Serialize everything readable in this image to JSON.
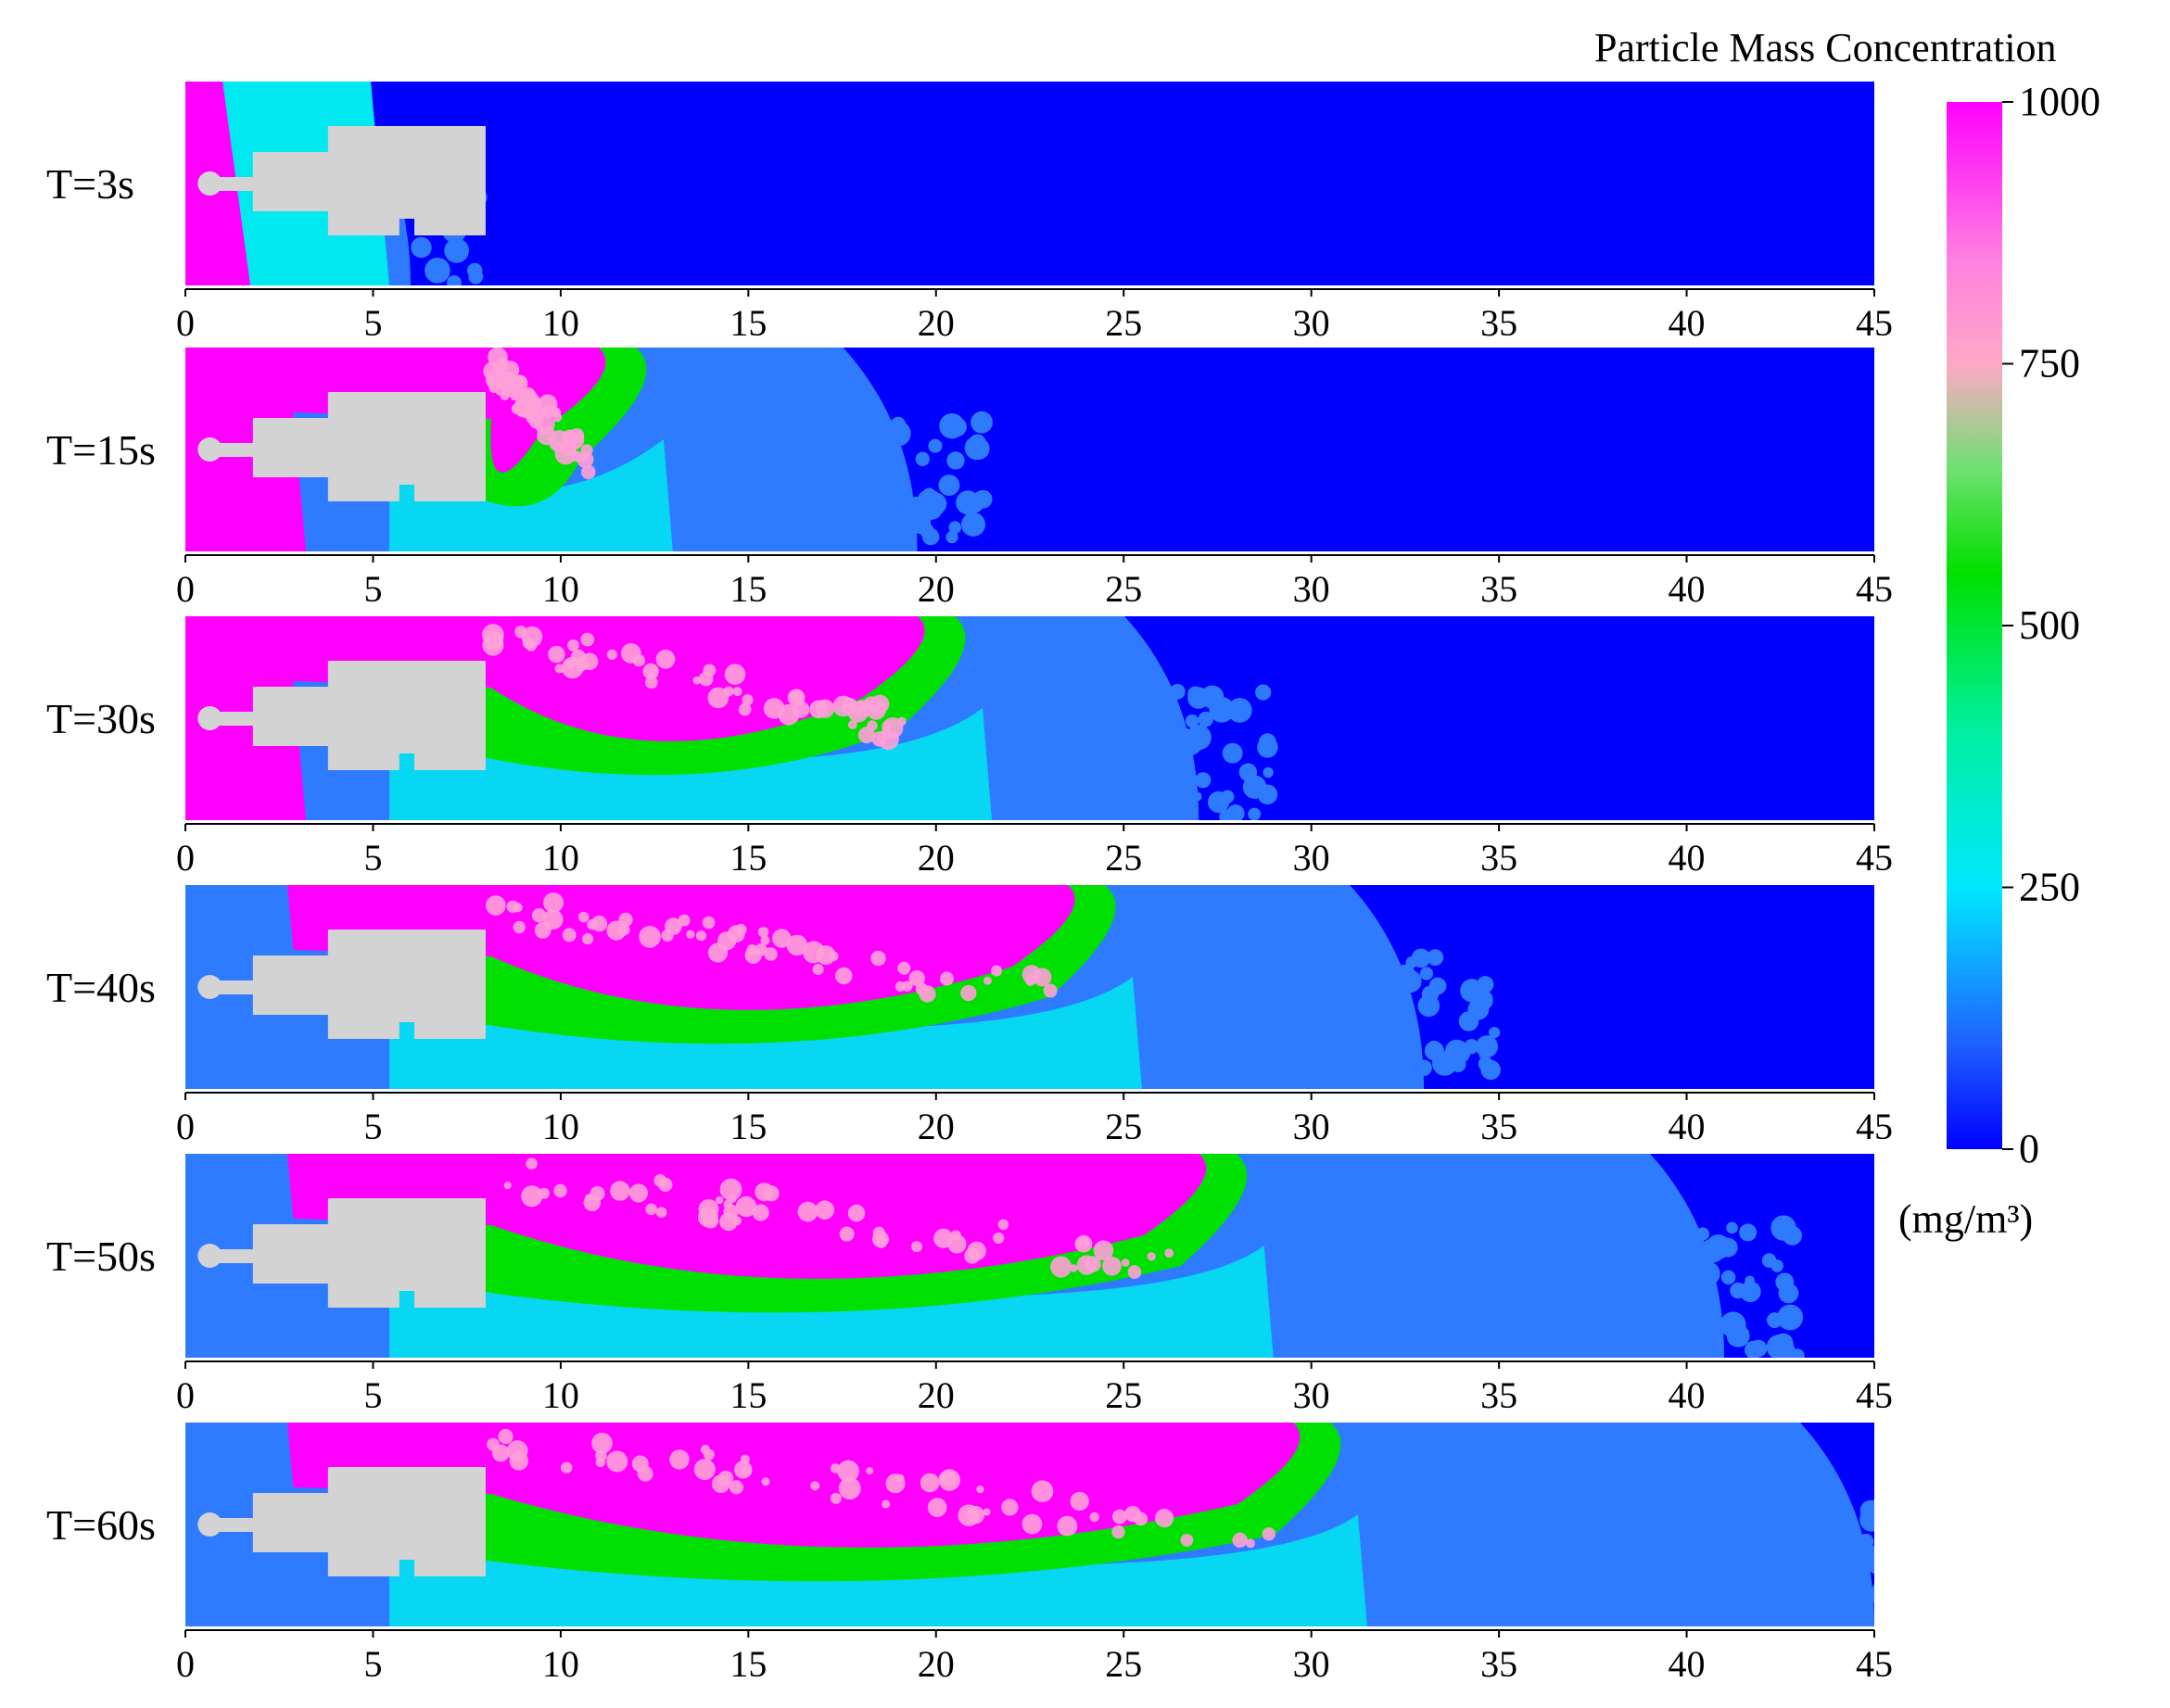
{
  "figure": {
    "colorbar": {
      "title": "Particle Mass Concentration",
      "unit": "(mg/m³)",
      "min": 0,
      "max": 1000,
      "ticks": [
        "0",
        "250",
        "500",
        "750",
        "1000"
      ],
      "tick_values": [
        0,
        250,
        500,
        750,
        1000
      ],
      "colors": [
        {
          "value": 0,
          "color": "#0000ff"
        },
        {
          "value": 100,
          "color": "#2060ff"
        },
        {
          "value": 250,
          "color": "#00e8ff"
        },
        {
          "value": 400,
          "color": "#00f0a0"
        },
        {
          "value": 550,
          "color": "#00e000"
        },
        {
          "value": 650,
          "color": "#70e070"
        },
        {
          "value": 750,
          "color": "#ffa8c8"
        },
        {
          "value": 850,
          "color": "#ff80e0"
        },
        {
          "value": 1000,
          "color": "#ff00ff"
        }
      ]
    },
    "axis": {
      "min": 0,
      "max": 45,
      "ticks": [
        "0",
        "5",
        "10",
        "15",
        "20",
        "25",
        "30",
        "35",
        "40",
        "45"
      ],
      "tick_values": [
        0,
        5,
        10,
        15,
        20,
        25,
        30,
        35,
        40,
        45
      ]
    },
    "panels": [
      {
        "label": "T=3s",
        "plume_front": 1.5,
        "diffusion_front": 6.0
      },
      {
        "label": "T=15s",
        "plume_front": 12.0,
        "diffusion_front": 19.5
      },
      {
        "label": "T=30s",
        "plume_front": 20.5,
        "diffusion_front": 27.0
      },
      {
        "label": "T=40s",
        "plume_front": 24.5,
        "diffusion_front": 33.0
      },
      {
        "label": "T=50s",
        "plume_front": 28.0,
        "diffusion_front": 41.0
      },
      {
        "label": "T=60s",
        "plume_front": 30.5,
        "diffusion_front": 45.0
      }
    ],
    "palette": {
      "background": "#0000ff",
      "low": "#2f7bff",
      "cyan": "#00e8f0",
      "green": "#00e000",
      "pink": "#ffa0d8",
      "magenta": "#ff00ff",
      "vehicle": "#d3d3d3"
    }
  }
}
